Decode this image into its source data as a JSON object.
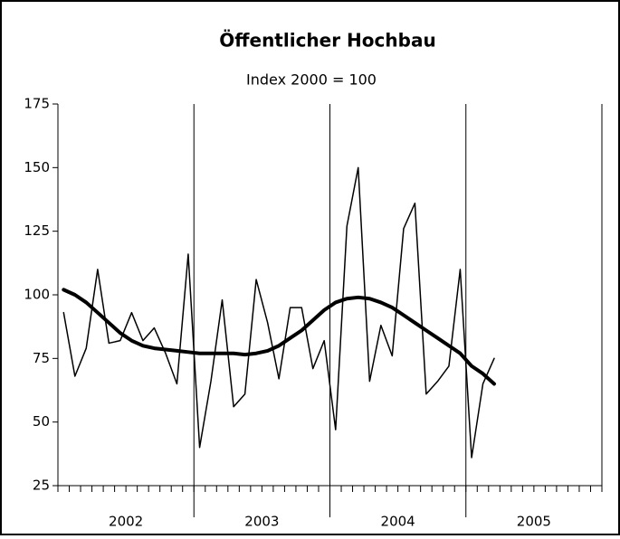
{
  "chart_data": {
    "type": "line",
    "title": "Öffentlicher Hochbau",
    "subtitle": "Index 2000 = 100",
    "x": [
      2002.042,
      2002.125,
      2002.208,
      2002.292,
      2002.375,
      2002.458,
      2002.542,
      2002.625,
      2002.708,
      2002.792,
      2002.875,
      2002.958,
      2003.042,
      2003.125,
      2003.208,
      2003.292,
      2003.375,
      2003.458,
      2003.542,
      2003.625,
      2003.708,
      2003.792,
      2003.875,
      2003.958,
      2004.042,
      2004.125,
      2004.208,
      2004.292,
      2004.375,
      2004.458,
      2004.542,
      2004.625,
      2004.708,
      2004.792,
      2004.875,
      2004.958,
      2005.042,
      2005.125,
      2005.208
    ],
    "series": [
      {
        "color": "#000000",
        "width": 1.5,
        "values": [
          93,
          68,
          79,
          110,
          81,
          82,
          93,
          82,
          87,
          77,
          65,
          116,
          40,
          66,
          98,
          56,
          61,
          106,
          89,
          67,
          95,
          95,
          71,
          82,
          47,
          127,
          150,
          66,
          88,
          76,
          126,
          136,
          61,
          66,
          72,
          110,
          36,
          65,
          75
        ]
      },
      {
        "color": "#000000",
        "width": 4,
        "values": [
          102,
          100,
          97,
          93,
          89,
          85,
          82,
          80,
          79,
          78.5,
          78,
          77.5,
          77,
          77,
          77,
          77,
          76.5,
          77,
          78,
          80,
          83,
          86,
          90,
          94,
          97,
          98.5,
          99,
          98.5,
          97,
          95,
          92,
          89,
          86,
          83,
          80,
          77,
          72,
          69,
          65
        ]
      }
    ],
    "xlim": [
      2002,
      2006
    ],
    "xticks": [
      {
        "value": 2002.5,
        "label": "2002"
      },
      {
        "value": 2003.5,
        "label": "2003"
      },
      {
        "value": 2004.5,
        "label": "2004"
      },
      {
        "value": 2005.5,
        "label": "2005"
      }
    ],
    "ylim": [
      25,
      175
    ],
    "yticks": [
      25,
      50,
      75,
      100,
      125,
      150,
      175
    ]
  }
}
